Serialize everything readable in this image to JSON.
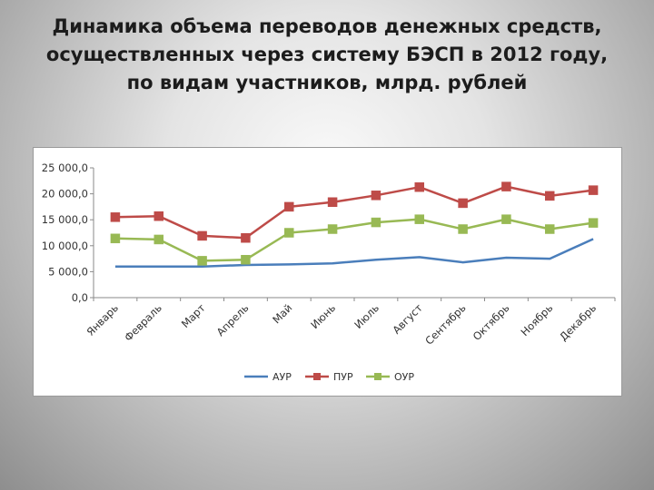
{
  "slide": {
    "title_lines": [
      "Динамика объема переводов денежных средств,",
      "осуществленных через систему БЭСП в 2012 году,",
      "по видам участников, млрд. рублей"
    ]
  },
  "chart_data": {
    "type": "line",
    "title": "Динамика объема переводов денежных средств, осуществленных через систему БЭСП в 2012 году, по видам участников, млрд. рублей",
    "categories": [
      "Январь",
      "Февраль",
      "Март",
      "Апрель",
      "Май",
      "Июнь",
      "Июль",
      "Август",
      "Сентябрь",
      "Октябрь",
      "Ноябрь",
      "Декабрь"
    ],
    "y_ticks": [
      "0,0",
      "5 000,0",
      "10 000,0",
      "15 000,0",
      "20 000,0",
      "25 000,0"
    ],
    "ylim": [
      0,
      25000
    ],
    "grid": false,
    "legend_position": "bottom",
    "series": [
      {
        "name": "АУР",
        "color": "#4a7ebb",
        "marker": "none",
        "values": [
          6000,
          6000,
          6000,
          6300,
          6400,
          6600,
          7300,
          7800,
          6800,
          7700,
          7500,
          11300
        ]
      },
      {
        "name": "ПУР",
        "color": "#be4b48",
        "marker": "square",
        "values": [
          15500,
          15700,
          11900,
          11500,
          17500,
          18400,
          19700,
          21300,
          18200,
          21400,
          19600,
          20700
        ]
      },
      {
        "name": "ОУР",
        "color": "#98b954",
        "marker": "square",
        "values": [
          11400,
          11200,
          7100,
          7300,
          12500,
          13200,
          14500,
          15100,
          13200,
          15100,
          13200,
          14400
        ]
      }
    ]
  }
}
